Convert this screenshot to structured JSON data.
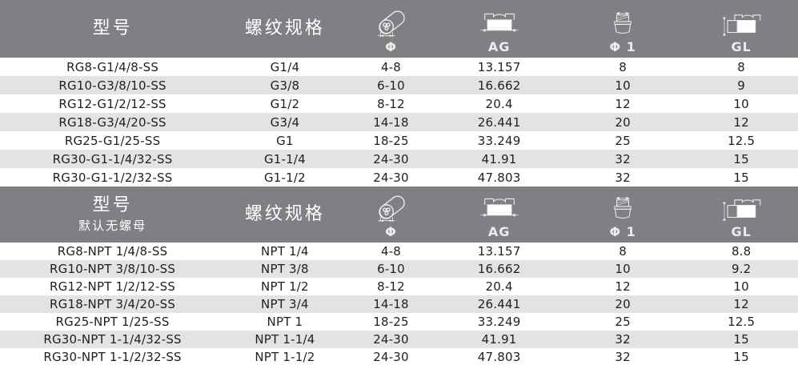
{
  "colors": {
    "header_bg": "#7e8083",
    "header_text": "#ffffff",
    "stripe": "#e3e3e3",
    "row_text": "#1f1f1f"
  },
  "icons": [
    {
      "name": "cable-diameter-icon",
      "label": "Φ"
    },
    {
      "name": "gland-width-icon",
      "label": "AG"
    },
    {
      "name": "thread-diameter-icon",
      "label": "Φ 1"
    },
    {
      "name": "gland-length-icon",
      "label": "GL"
    }
  ],
  "tables": [
    {
      "header": {
        "model_label": "型号",
        "model_sub": "",
        "thread_label": "螺纹规格",
        "dim_labels": [
          "Φ",
          "AG",
          "Φ 1",
          "GL"
        ]
      },
      "rows": [
        [
          "RG8-G1/4/8-SS",
          "G1/4",
          "4-8",
          "13.157",
          "8",
          "8"
        ],
        [
          "RG10-G3/8/10-SS",
          "G3/8",
          "6-10",
          "16.662",
          "10",
          "9"
        ],
        [
          "RG12-G1/2/12-SS",
          "G1/2",
          "8-12",
          "20.4",
          "12",
          "10"
        ],
        [
          "RG18-G3/4/20-SS",
          "G3/4",
          "14-18",
          "26.441",
          "20",
          "12"
        ],
        [
          "RG25-G1/25-SS",
          "G1",
          "18-25",
          "33.249",
          "25",
          "12.5"
        ],
        [
          "RG30-G1-1/4/32-SS",
          "G1-1/4",
          "24-30",
          "41.91",
          "32",
          "15"
        ],
        [
          "RG30-G1-1/2/32-SS",
          "G1-1/2",
          "24-30",
          "47.803",
          "32",
          "15"
        ]
      ]
    },
    {
      "header": {
        "model_label": "型号",
        "model_sub": "默认无螺母",
        "thread_label": "螺纹规格",
        "dim_labels": [
          "Φ",
          "AG",
          "Φ 1",
          "GL"
        ]
      },
      "rows": [
        [
          "RG8-NPT 1/4/8-SS",
          "NPT 1/4",
          "4-8",
          "13.157",
          "8",
          "8.8"
        ],
        [
          "RG10-NPT 3/8/10-SS",
          "NPT 3/8",
          "6-10",
          "16.662",
          "10",
          "9.2"
        ],
        [
          "RG12-NPT 1/2/12-SS",
          "NPT 1/2",
          "8-12",
          "20.4",
          "12",
          "10"
        ],
        [
          "RG18-NPT 3/4/20-SS",
          "NPT 3/4",
          "14-18",
          "26.441",
          "20",
          "12"
        ],
        [
          "RG25-NPT 1/25-SS",
          "NPT 1",
          "18-25",
          "33.249",
          "25",
          "12.5"
        ],
        [
          "RG30-NPT 1-1/4/32-SS",
          "NPT 1-1/4",
          "24-30",
          "41.91",
          "32",
          "15"
        ],
        [
          "RG30-NPT 1-1/2/32-SS",
          "NPT 1-1/2",
          "24-30",
          "47.803",
          "32",
          "15"
        ]
      ]
    }
  ]
}
